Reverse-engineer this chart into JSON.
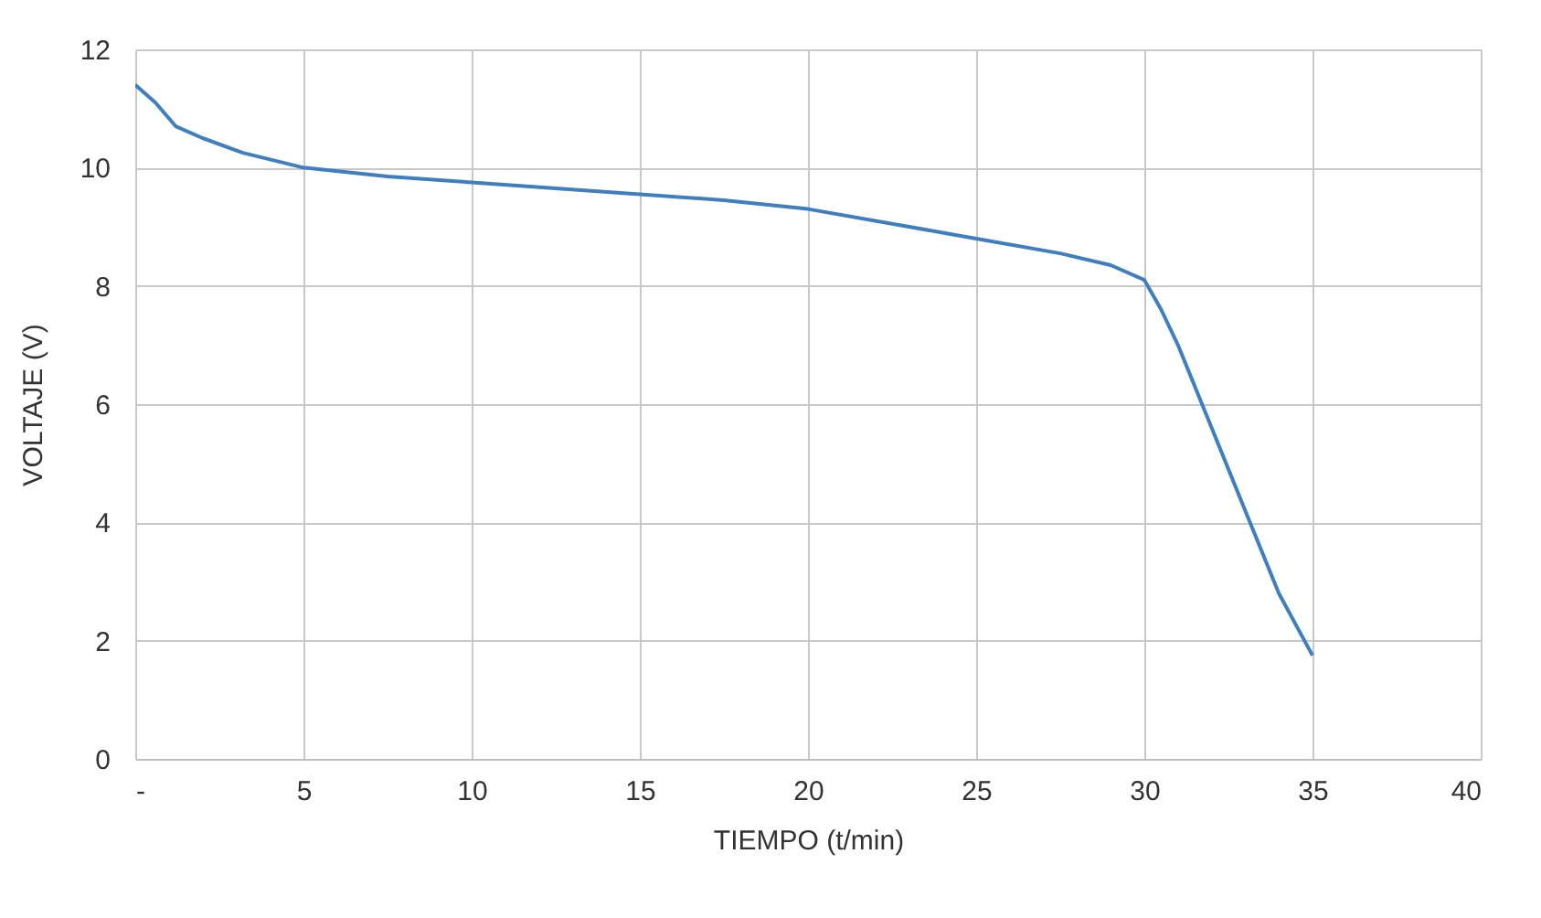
{
  "chart_data": {
    "type": "line",
    "xlabel": "TIEMPO (t/min)",
    "ylabel": "VOLTAJE (V)",
    "x": [
      0,
      0.6,
      1.2,
      2,
      3.2,
      5,
      7.5,
      10,
      12.5,
      15,
      17.5,
      20,
      22.5,
      25,
      27.5,
      29,
      30,
      30.5,
      31,
      32,
      33,
      34,
      35
    ],
    "series": [
      {
        "color": "#3f7fc0",
        "values": [
          11.4,
          11.1,
          10.7,
          10.5,
          10.25,
          10.0,
          9.85,
          9.75,
          9.65,
          9.55,
          9.45,
          9.3,
          9.05,
          8.8,
          8.55,
          8.35,
          8.1,
          7.6,
          7.0,
          5.6,
          4.2,
          2.8,
          1.75
        ]
      }
    ],
    "xlim": [
      0,
      40
    ],
    "xticks": [
      {
        "value": 0,
        "label": "-"
      },
      5,
      10,
      15,
      20,
      25,
      30,
      35,
      40
    ],
    "ylim": [
      0,
      12
    ],
    "yticks": [
      0,
      2,
      4,
      6,
      8,
      10,
      12
    ],
    "grid": true,
    "marker": "none",
    "line_style": "solid"
  }
}
